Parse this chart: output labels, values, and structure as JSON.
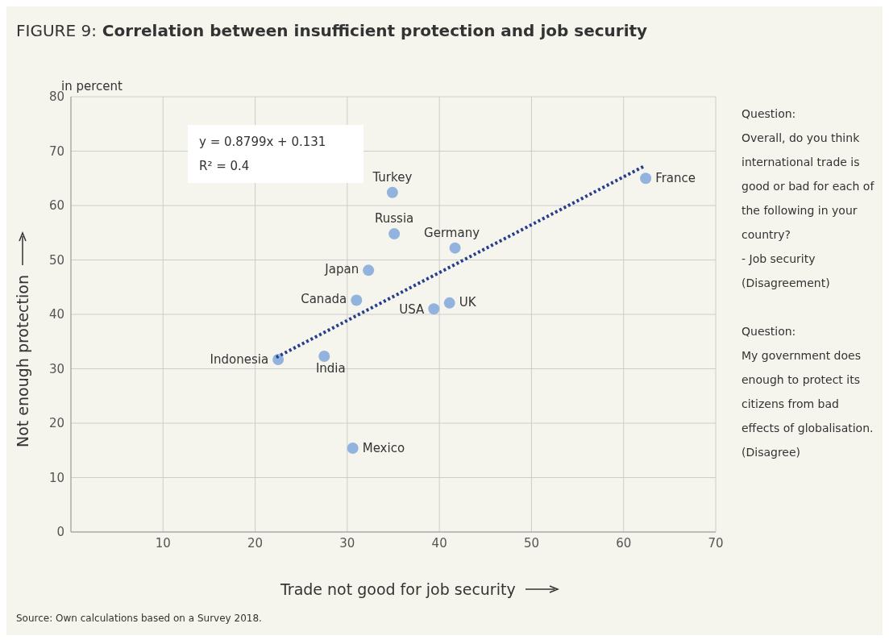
{
  "chart_data": {
    "type": "scatter",
    "title": "FIGURE 9: Correlation between insufficient protection and job security",
    "xlabel": "Trade not good for job security",
    "ylabel": "Not enough protection",
    "x": [
      34.9,
      35.1,
      41.7,
      32.3,
      31.0,
      39.4,
      41.1,
      22.5,
      27.5,
      30.6,
      62.4
    ],
    "series": [
      {
        "color": "#91b3de",
        "values": [
          62.4,
          54.8,
          52.2,
          48.1,
          42.6,
          41.0,
          42.1,
          31.7,
          32.3,
          15.4,
          65.0
        ]
      },
      {
        "type": "line",
        "marker": "none",
        "color": "#283e8c",
        "line_style": "dotted",
        "x": [
          22.3,
          62.3
        ],
        "values": [
          32.1,
          67.3
        ]
      }
    ],
    "xlim": [
      0,
      70
    ],
    "xticks": [
      10,
      20,
      30,
      40,
      50,
      60,
      70
    ],
    "ylim": [
      0,
      80
    ],
    "yticks": [
      0,
      10,
      20,
      30,
      40,
      50,
      60,
      70,
      80
    ],
    "grid": true,
    "marker": "circle",
    "annotations": [
      "y = 0.8799x + 0.131",
      "R² = 0.4",
      "in percent",
      "Question:",
      "Overall, do you think international trade is good or bad for each of the following in your country?",
      "- Job security",
      "(Disagreement)",
      "Question:",
      "My government does enough to protect its citizens from bad effects of globalisation.",
      "(Disagree)",
      "Source: Own calculations based on a Survey 2018.",
      {
        "text": "Turkey",
        "x": 34.9,
        "y": 62.4
      },
      {
        "text": "Russia",
        "x": 35.1,
        "y": 54.8
      },
      {
        "text": "Germany",
        "x": 41.7,
        "y": 52.2
      },
      {
        "text": "Japan",
        "x": 32.3,
        "y": 48.1
      },
      {
        "text": "Canada",
        "x": 31.0,
        "y": 42.6
      },
      {
        "text": "USA",
        "x": 39.4,
        "y": 41.0
      },
      {
        "text": "UK",
        "x": 41.1,
        "y": 42.1
      },
      {
        "text": "Indonesia",
        "x": 22.5,
        "y": 31.7
      },
      {
        "text": "India",
        "x": 27.5,
        "y": 32.3
      },
      {
        "text": "Mexico",
        "x": 30.6,
        "y": 15.4
      },
      {
        "text": "France",
        "x": 62.4,
        "y": 65.0
      }
    ]
  }
}
